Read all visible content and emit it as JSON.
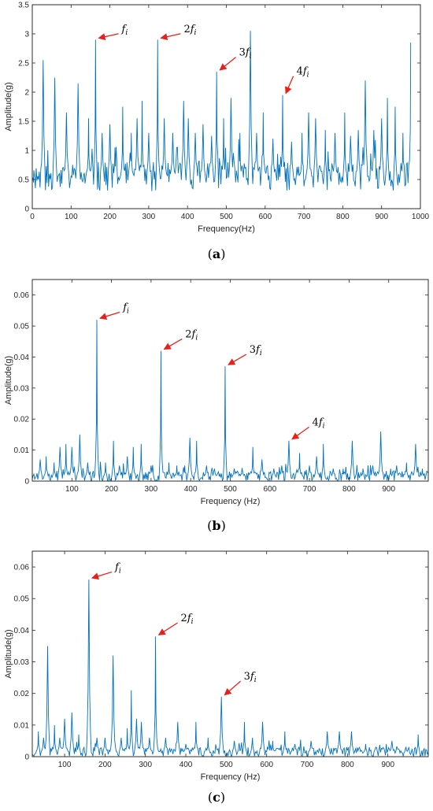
{
  "chart_data": [
    {
      "type": "line",
      "panel": "a",
      "caption": "a",
      "xlabel": "Frequency(Hz)",
      "ylabel": "Amplitude(g)",
      "xlim": [
        0,
        1000
      ],
      "ylim": [
        0,
        3.5
      ],
      "xticks": [
        0,
        100,
        200,
        300,
        400,
        500,
        600,
        700,
        800,
        900,
        1000
      ],
      "yticks": [
        0,
        0.5,
        1,
        1.5,
        2,
        2.5,
        3,
        3.5
      ],
      "line_color": "#0072BD",
      "grid": false,
      "base_level": 0.55,
      "noise_level": 0.25,
      "x_range": [
        0,
        975
      ],
      "peaks": [
        [
          3,
          0.45
        ],
        [
          28,
          2.55
        ],
        [
          58,
          2.25
        ],
        [
          88,
          1.65
        ],
        [
          118,
          2.15
        ],
        [
          145,
          1.55
        ],
        [
          163,
          2.9
        ],
        [
          180,
          1.3
        ],
        [
          200,
          1.45
        ],
        [
          213,
          1.05
        ],
        [
          233,
          1.75
        ],
        [
          255,
          1.3
        ],
        [
          270,
          1.55
        ],
        [
          283,
          1.85
        ],
        [
          300,
          1.3
        ],
        [
          323,
          2.9
        ],
        [
          340,
          1.55
        ],
        [
          362,
          1.3
        ],
        [
          372,
          1.05
        ],
        [
          390,
          1.85
        ],
        [
          402,
          1.55
        ],
        [
          420,
          1.3
        ],
        [
          440,
          1.45
        ],
        [
          462,
          1.25
        ],
        [
          475,
          2.35
        ],
        [
          493,
          1.55
        ],
        [
          512,
          1.9
        ],
        [
          535,
          1.3
        ],
        [
          562,
          3.05
        ],
        [
          578,
          1.3
        ],
        [
          595,
          1.65
        ],
        [
          620,
          1.2
        ],
        [
          645,
          1.95
        ],
        [
          668,
          1.15
        ],
        [
          695,
          1.3
        ],
        [
          712,
          1.65
        ],
        [
          730,
          1.55
        ],
        [
          755,
          1.35
        ],
        [
          780,
          1.3
        ],
        [
          805,
          1.65
        ],
        [
          820,
          1.25
        ],
        [
          840,
          1.35
        ],
        [
          858,
          2.2
        ],
        [
          880,
          1.35
        ],
        [
          900,
          1.55
        ],
        [
          915,
          1.9
        ],
        [
          935,
          1.75
        ],
        [
          955,
          1.3
        ],
        [
          975,
          2.85
        ]
      ],
      "annotations": [
        {
          "text": "fi",
          "x": 163,
          "y": 2.9
        },
        {
          "text": "2fi",
          "x": 323,
          "y": 2.9
        },
        {
          "text": "3fi",
          "x": 475,
          "y": 2.35
        },
        {
          "text": "4fi",
          "x": 645,
          "y": 1.95
        }
      ]
    },
    {
      "type": "line",
      "panel": "b",
      "caption": "b",
      "xlabel": "Frequency (Hz)",
      "ylabel": "Amplitude(g)",
      "xlim": [
        0,
        1000
      ],
      "ylim": [
        0,
        0.065
      ],
      "xticks": [
        100,
        200,
        300,
        400,
        500,
        600,
        700,
        800,
        900
      ],
      "yticks": [
        0,
        0.01,
        0.02,
        0.03,
        0.04,
        0.05,
        0.06
      ],
      "line_color": "#0072BD",
      "grid": false,
      "base_level": 0.0015,
      "noise_level": 0.0018,
      "x_range": [
        0,
        1000
      ],
      "peaks": [
        [
          20,
          0.007
        ],
        [
          35,
          0.008
        ],
        [
          55,
          0.006
        ],
        [
          70,
          0.011
        ],
        [
          85,
          0.012
        ],
        [
          100,
          0.011
        ],
        [
          120,
          0.015
        ],
        [
          140,
          0.006
        ],
        [
          163,
          0.052
        ],
        [
          185,
          0.006
        ],
        [
          205,
          0.013
        ],
        [
          220,
          0.005
        ],
        [
          240,
          0.008
        ],
        [
          255,
          0.011
        ],
        [
          275,
          0.012
        ],
        [
          300,
          0.005
        ],
        [
          325,
          0.042
        ],
        [
          345,
          0.006
        ],
        [
          365,
          0.005
        ],
        [
          385,
          0.005
        ],
        [
          398,
          0.014
        ],
        [
          415,
          0.013
        ],
        [
          440,
          0.005
        ],
        [
          460,
          0.004
        ],
        [
          487,
          0.037
        ],
        [
          510,
          0.004
        ],
        [
          530,
          0.004
        ],
        [
          557,
          0.011
        ],
        [
          580,
          0.007
        ],
        [
          610,
          0.004
        ],
        [
          630,
          0.005
        ],
        [
          648,
          0.013
        ],
        [
          675,
          0.009
        ],
        [
          700,
          0.005
        ],
        [
          718,
          0.008
        ],
        [
          735,
          0.012
        ],
        [
          760,
          0.004
        ],
        [
          785,
          0.004
        ],
        [
          808,
          0.013
        ],
        [
          835,
          0.004
        ],
        [
          860,
          0.005
        ],
        [
          880,
          0.016
        ],
        [
          905,
          0.004
        ],
        [
          920,
          0.005
        ],
        [
          945,
          0.006
        ],
        [
          968,
          0.012
        ],
        [
          985,
          0.004
        ]
      ],
      "annotations": [
        {
          "text": "fi",
          "x": 163,
          "y": 0.052
        },
        {
          "text": "2fi",
          "x": 325,
          "y": 0.042
        },
        {
          "text": "3fi",
          "x": 487,
          "y": 0.037
        },
        {
          "text": "4fi",
          "x": 648,
          "y": 0.013
        }
      ]
    },
    {
      "type": "line",
      "panel": "c",
      "caption": "c",
      "xlabel": "Frequency (Hz)",
      "ylabel": "Amplitude(g)",
      "xlim": [
        20,
        1000
      ],
      "ylim": [
        0,
        0.065
      ],
      "xticks": [
        100,
        200,
        300,
        400,
        500,
        600,
        700,
        800,
        900
      ],
      "yticks": [
        0,
        0.01,
        0.02,
        0.03,
        0.04,
        0.05,
        0.06
      ],
      "line_color": "#0072BD",
      "grid": false,
      "base_level": 0.0015,
      "noise_level": 0.0015,
      "x_range": [
        20,
        1000
      ],
      "peaks": [
        [
          35,
          0.008
        ],
        [
          48,
          0.006
        ],
        [
          58,
          0.035
        ],
        [
          75,
          0.01
        ],
        [
          88,
          0.006
        ],
        [
          100,
          0.012
        ],
        [
          118,
          0.014
        ],
        [
          135,
          0.007
        ],
        [
          160,
          0.056
        ],
        [
          180,
          0.006
        ],
        [
          200,
          0.006
        ],
        [
          220,
          0.032
        ],
        [
          240,
          0.006
        ],
        [
          255,
          0.009
        ],
        [
          265,
          0.021
        ],
        [
          278,
          0.012
        ],
        [
          290,
          0.011
        ],
        [
          310,
          0.006
        ],
        [
          325,
          0.038
        ],
        [
          350,
          0.006
        ],
        [
          380,
          0.011
        ],
        [
          400,
          0.004
        ],
        [
          425,
          0.011
        ],
        [
          455,
          0.006
        ],
        [
          488,
          0.019
        ],
        [
          520,
          0.005
        ],
        [
          545,
          0.011
        ],
        [
          565,
          0.006
        ],
        [
          590,
          0.011
        ],
        [
          615,
          0.005
        ],
        [
          645,
          0.008
        ],
        [
          670,
          0.004
        ],
        [
          710,
          0.005
        ],
        [
          750,
          0.008
        ],
        [
          780,
          0.008
        ],
        [
          810,
          0.008
        ],
        [
          845,
          0.004
        ],
        [
          870,
          0.003
        ],
        [
          910,
          0.005
        ],
        [
          945,
          0.003
        ],
        [
          975,
          0.007
        ]
      ],
      "annotations": [
        {
          "text": "fi",
          "x": 160,
          "y": 0.056
        },
        {
          "text": "2fi",
          "x": 325,
          "y": 0.038
        },
        {
          "text": "3fi",
          "x": 488,
          "y": 0.019
        }
      ]
    }
  ]
}
